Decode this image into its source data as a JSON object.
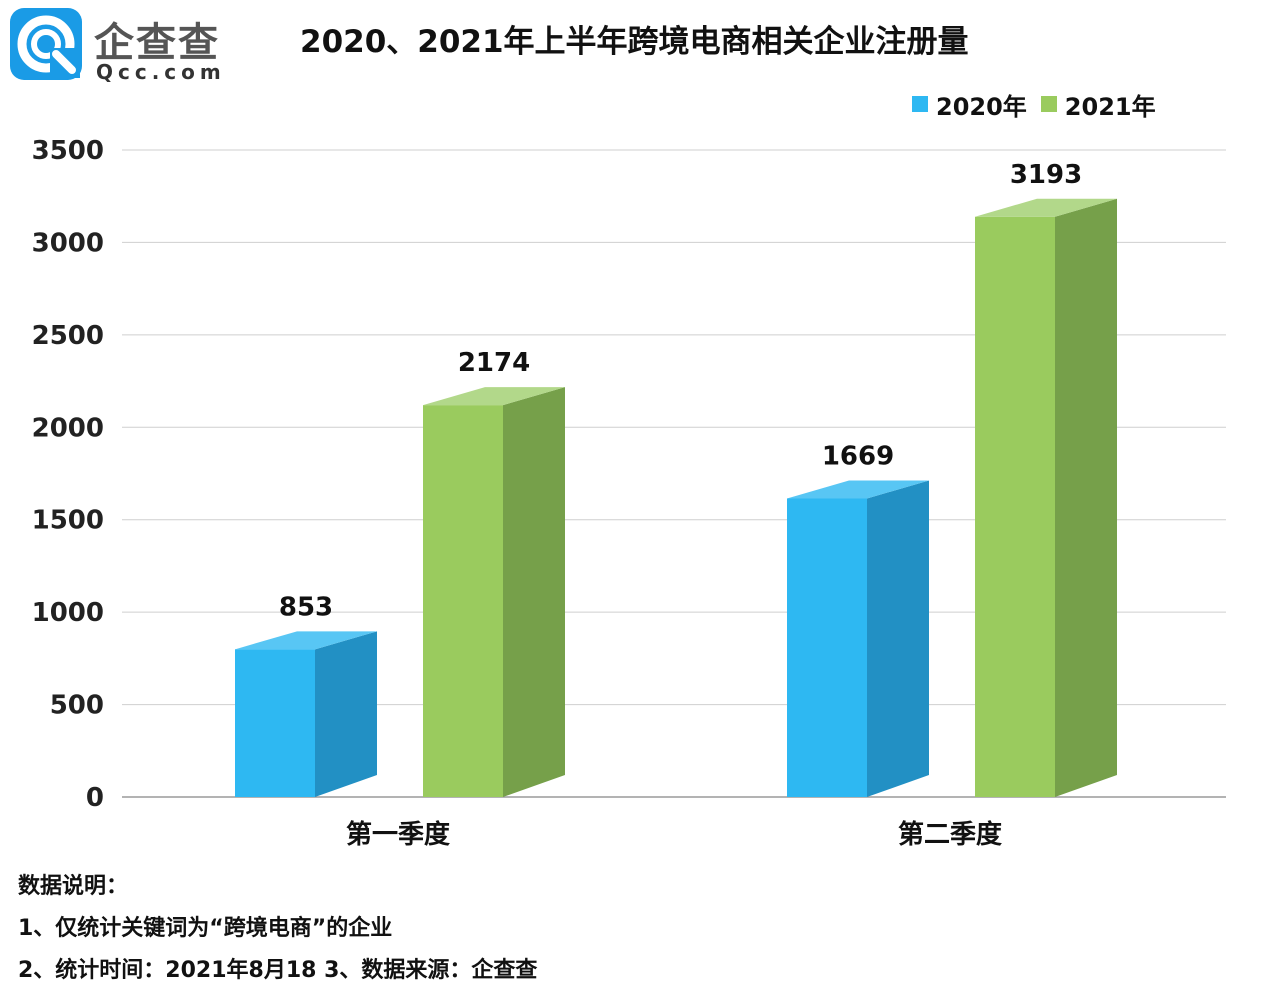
{
  "brand": {
    "name_cn": "企查查",
    "name_en": "Qcc.com"
  },
  "colors": {
    "brand_blue": "#1a9be6",
    "series_2020_front": "#2eb8f2",
    "series_2020_side": "#2290c4",
    "series_2020_top": "#58c6f4",
    "series_2021_front": "#9acb5e",
    "series_2021_side": "#76a04a",
    "series_2021_top": "#b2d88a",
    "gridline": "#cfcfcf"
  },
  "chart_data": {
    "type": "bar",
    "title": "2020、2021年上半年跨境电商相关企业注册量",
    "categories": [
      "第一季度",
      "第二季度"
    ],
    "series": [
      {
        "name": "2020年",
        "values": [
          853,
          1669
        ]
      },
      {
        "name": "2021年",
        "values": [
          2174,
          3193
        ]
      }
    ],
    "xlabel": "",
    "ylabel": "",
    "ylim": [
      0,
      3500
    ],
    "yticks": [
      0,
      500,
      1000,
      1500,
      2000,
      2500,
      3000,
      3500
    ],
    "grid": true,
    "legend_position": "top-right",
    "style": "3d-columns"
  },
  "notes": {
    "heading": "数据说明：",
    "line1": "1、仅统计关键词为“跨境电商”的企业",
    "line2": "2、统计时间：2021年8月18   3、数据来源：企查查"
  }
}
